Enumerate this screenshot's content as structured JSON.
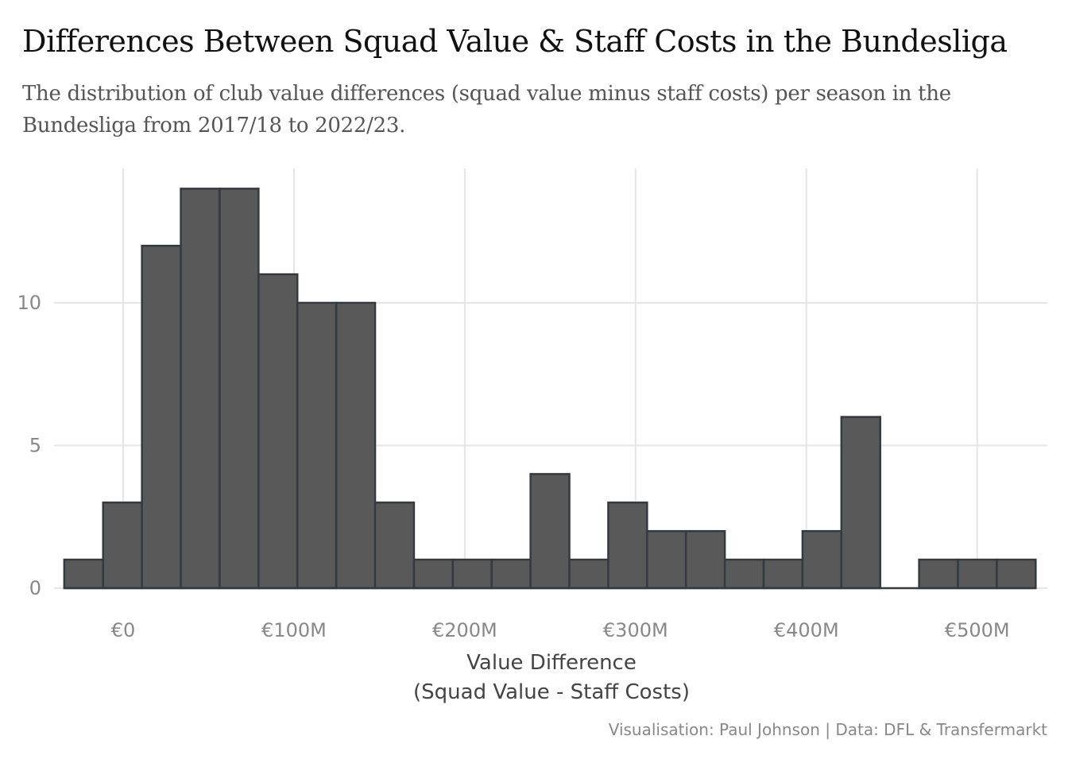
{
  "chart_data": {
    "type": "bar",
    "title": "Differences Between Squad Value & Staff Costs in the Bundesliga",
    "subtitle": "The distribution of club value differences (squad value minus staff costs) per season in the Bundesliga from 2017/18 to 2022/23.",
    "xlabel_line1": "Value Difference",
    "xlabel_line2": "(Squad Value - Staff Costs)",
    "ylabel": "",
    "caption": "Visualisation: Paul Johnson | Data: DFL & Transfermarkt",
    "bin_width_millions": 22.75,
    "bins_start_millions": [
      -34.5,
      -11.75,
      11,
      33.75,
      56.5,
      79.25,
      102,
      124.75,
      147.5,
      170.25,
      193,
      215.75,
      238.5,
      261.25,
      284,
      306.75,
      329.5,
      352.25,
      375,
      397.75,
      420.5,
      443.25,
      466,
      488.75,
      511.5
    ],
    "counts": [
      1,
      3,
      12,
      14,
      14,
      11,
      10,
      10,
      3,
      1,
      1,
      1,
      4,
      1,
      3,
      2,
      2,
      1,
      1,
      2,
      6,
      0,
      1,
      1,
      1
    ],
    "xlim": [
      -40,
      540
    ],
    "ylim": [
      0,
      14.5
    ],
    "x_ticks": [
      0,
      100,
      200,
      300,
      400,
      500
    ],
    "x_tick_labels": [
      "€0",
      "€100M",
      "€200M",
      "€300M",
      "€400M",
      "€500M"
    ],
    "y_ticks": [
      0,
      5,
      10
    ],
    "y_tick_labels": [
      "0",
      "5",
      "10"
    ],
    "grid": true,
    "colors": {
      "bar_fill": "#595959",
      "bar_stroke": "#343a40",
      "grid": "#e5e5e5",
      "baseline": "#343a40"
    }
  }
}
